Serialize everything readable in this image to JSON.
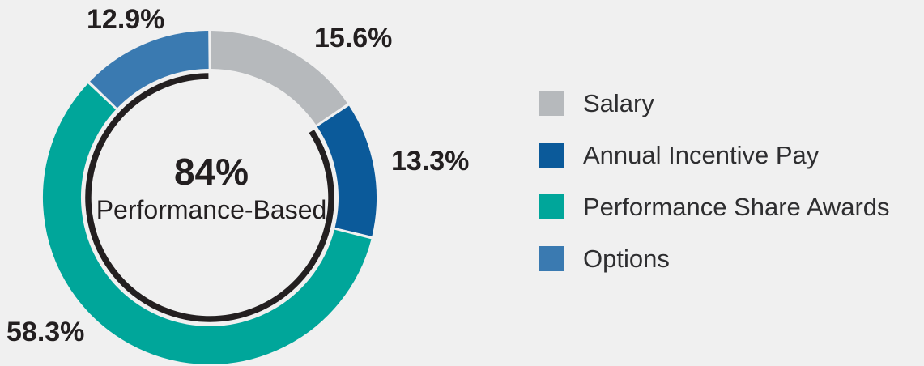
{
  "colors": {
    "background": "#f0f0f0",
    "text": "#231f20"
  },
  "chart_data": {
    "type": "pie",
    "variant": "donut",
    "title": "",
    "center": {
      "value": "84%",
      "label": "Performance-Based"
    },
    "segments": [
      {
        "label": "Salary",
        "value": 15.6,
        "display": "15.6%",
        "color": "#b6b9bc"
      },
      {
        "label": "Annual Incentive Pay",
        "value": 13.3,
        "display": "13.3%",
        "color": "#0b5a9a"
      },
      {
        "label": "Performance Share Awards",
        "value": 58.3,
        "display": "58.3%",
        "color": "#00a69a"
      },
      {
        "label": "Options",
        "value": 12.9,
        "display": "12.9%",
        "color": "#3a7ab1"
      }
    ],
    "performance_arc": {
      "note": "inner black arc spanning all segments except Salary",
      "covers_percent": 84,
      "start_after_segment": "Salary",
      "color": "#231f20"
    },
    "layout_hints": {
      "start_angle_deg_from_north": 0,
      "direction": "clockwise",
      "legend_position": "right",
      "segment_separator_color": "#ffffff"
    }
  }
}
